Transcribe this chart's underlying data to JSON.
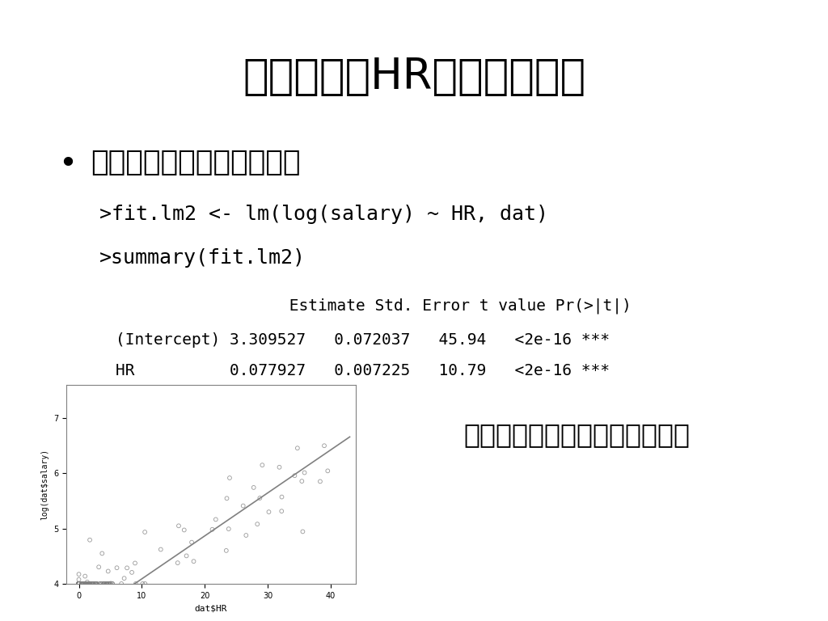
{
  "title": "対数年俸とHRの回帰モデル",
  "bullet1": "対数年俸を目的変数に回帰",
  "code_line1": ">fit.lm2 <- lm(log(salary) ~ HR, dat)",
  "code_line2": ">summary(fit.lm2)",
  "table_header": "             Estimate Std. Error t value Pr(>|t|)",
  "table_row1": "(Intercept) 3.309527   0.072037   45.94   <2e-16 ***",
  "table_row2": "HR          0.077927   0.007225   10.79   <2e-16 ***",
  "comment": "まぁどっちにしても有意やな（",
  "plot_xlabel": "dat$HR",
  "plot_ylabel": "log(dat$salary)",
  "intercept": 3.309527,
  "slope": 0.077927,
  "background_color": "#ffffff",
  "text_color": "#000000"
}
